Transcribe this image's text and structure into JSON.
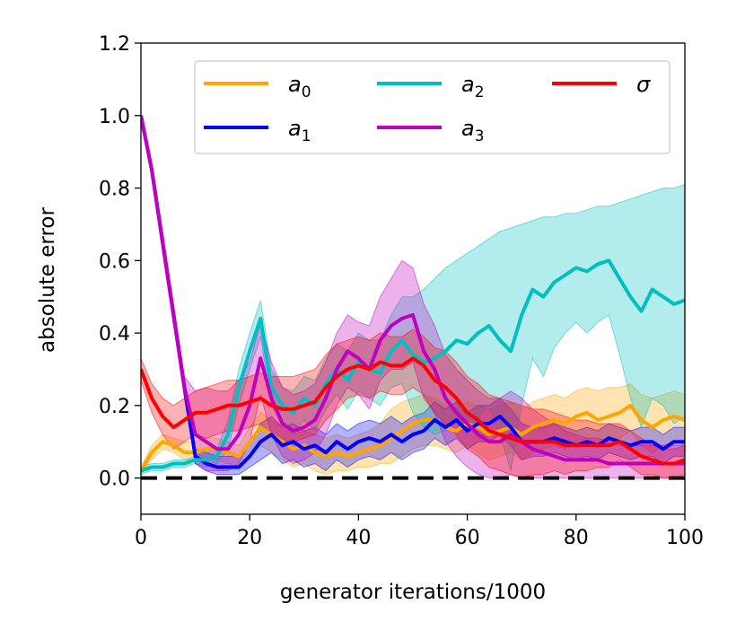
{
  "chart_data": {
    "type": "line",
    "title": "",
    "xlabel": "generator iterations/1000",
    "ylabel": "absolute error",
    "xlim": [
      0,
      100
    ],
    "ylim": [
      -0.1,
      1.2
    ],
    "xticks": [
      0,
      20,
      40,
      60,
      80,
      100
    ],
    "yticks": [
      0.0,
      0.2,
      0.4,
      0.6,
      0.8,
      1.0,
      1.2
    ],
    "xtick_labels": [
      "0",
      "20",
      "40",
      "60",
      "80",
      "100"
    ],
    "ytick_labels": [
      "0.0",
      "0.2",
      "0.4",
      "0.6",
      "0.8",
      "1.0",
      "1.2"
    ],
    "grid": false,
    "legend_position": "top-right",
    "legend_columns": 3,
    "reference_line": {
      "y": 0.0,
      "style": "dashed",
      "color": "#000000"
    },
    "series": [
      {
        "name": "a0",
        "label_base": "a",
        "label_sub": "0",
        "color": "#FFA500",
        "x": [
          0,
          2,
          4,
          6,
          8,
          10,
          12,
          14,
          16,
          18,
          20,
          22,
          24,
          26,
          28,
          30,
          32,
          34,
          36,
          38,
          40,
          42,
          44,
          46,
          48,
          50,
          52,
          54,
          56,
          58,
          60,
          62,
          64,
          66,
          68,
          70,
          72,
          74,
          76,
          78,
          80,
          82,
          84,
          86,
          88,
          90,
          92,
          94,
          96,
          98,
          100
        ],
        "values": [
          0.02,
          0.07,
          0.1,
          0.09,
          0.07,
          0.07,
          0.08,
          0.08,
          0.07,
          0.06,
          0.1,
          0.14,
          0.12,
          0.1,
          0.08,
          0.09,
          0.07,
          0.06,
          0.07,
          0.06,
          0.07,
          0.08,
          0.09,
          0.11,
          0.13,
          0.15,
          0.16,
          0.16,
          0.14,
          0.13,
          0.15,
          0.14,
          0.12,
          0.13,
          0.14,
          0.12,
          0.14,
          0.15,
          0.16,
          0.15,
          0.17,
          0.18,
          0.16,
          0.17,
          0.18,
          0.2,
          0.16,
          0.14,
          0.16,
          0.17,
          0.16
        ],
        "upper": [
          0.03,
          0.09,
          0.12,
          0.11,
          0.1,
          0.1,
          0.11,
          0.11,
          0.1,
          0.09,
          0.14,
          0.18,
          0.16,
          0.14,
          0.12,
          0.13,
          0.12,
          0.11,
          0.12,
          0.11,
          0.12,
          0.13,
          0.15,
          0.19,
          0.21,
          0.22,
          0.23,
          0.22,
          0.2,
          0.19,
          0.21,
          0.2,
          0.19,
          0.2,
          0.21,
          0.19,
          0.21,
          0.22,
          0.23,
          0.22,
          0.24,
          0.25,
          0.24,
          0.25,
          0.25,
          0.26,
          0.23,
          0.22,
          0.23,
          0.24,
          0.23
        ],
        "lower": [
          0.01,
          0.05,
          0.08,
          0.07,
          0.05,
          0.05,
          0.05,
          0.05,
          0.04,
          0.03,
          0.06,
          0.09,
          0.07,
          0.05,
          0.03,
          0.04,
          0.02,
          0.01,
          0.02,
          0.02,
          0.03,
          0.03,
          0.04,
          0.04,
          0.06,
          0.08,
          0.09,
          0.09,
          0.08,
          0.07,
          0.09,
          0.07,
          0.05,
          0.06,
          0.07,
          0.05,
          0.07,
          0.08,
          0.09,
          0.08,
          0.1,
          0.11,
          0.09,
          0.1,
          0.11,
          0.13,
          0.09,
          0.07,
          0.09,
          0.1,
          0.09
        ]
      },
      {
        "name": "a1",
        "label_base": "a",
        "label_sub": "1",
        "color": "#0000FF",
        "x": [
          0,
          2,
          4,
          6,
          8,
          10,
          12,
          14,
          16,
          18,
          20,
          22,
          24,
          26,
          28,
          30,
          32,
          34,
          36,
          38,
          40,
          42,
          44,
          46,
          48,
          50,
          52,
          54,
          56,
          58,
          60,
          62,
          64,
          66,
          68,
          70,
          72,
          74,
          76,
          78,
          80,
          82,
          84,
          86,
          88,
          90,
          92,
          94,
          96,
          98,
          100
        ],
        "values": [
          1.0,
          0.85,
          0.65,
          0.45,
          0.25,
          0.06,
          0.04,
          0.03,
          0.03,
          0.03,
          0.06,
          0.1,
          0.12,
          0.09,
          0.1,
          0.08,
          0.09,
          0.07,
          0.1,
          0.08,
          0.1,
          0.11,
          0.1,
          0.12,
          0.1,
          0.12,
          0.13,
          0.16,
          0.14,
          0.16,
          0.13,
          0.15,
          0.15,
          0.17,
          0.14,
          0.1,
          0.1,
          0.1,
          0.11,
          0.1,
          0.09,
          0.1,
          0.09,
          0.11,
          0.1,
          0.09,
          0.1,
          0.1,
          0.08,
          0.1,
          0.1
        ],
        "upper": [
          1.0,
          0.86,
          0.66,
          0.46,
          0.26,
          0.08,
          0.07,
          0.06,
          0.06,
          0.06,
          0.1,
          0.15,
          0.17,
          0.14,
          0.15,
          0.13,
          0.14,
          0.12,
          0.15,
          0.13,
          0.15,
          0.16,
          0.15,
          0.17,
          0.15,
          0.17,
          0.18,
          0.21,
          0.19,
          0.21,
          0.18,
          0.2,
          0.2,
          0.22,
          0.19,
          0.15,
          0.14,
          0.14,
          0.15,
          0.14,
          0.13,
          0.14,
          0.13,
          0.15,
          0.14,
          0.13,
          0.14,
          0.14,
          0.12,
          0.14,
          0.14
        ],
        "lower": [
          0.99,
          0.84,
          0.64,
          0.44,
          0.24,
          0.04,
          0.02,
          0.01,
          0.01,
          0.01,
          0.03,
          0.05,
          0.07,
          0.04,
          0.05,
          0.03,
          0.04,
          0.02,
          0.05,
          0.03,
          0.05,
          0.06,
          0.05,
          0.07,
          0.05,
          0.07,
          0.08,
          0.11,
          0.09,
          0.11,
          0.08,
          0.1,
          0.1,
          0.12,
          0.09,
          0.05,
          0.06,
          0.06,
          0.07,
          0.06,
          0.05,
          0.06,
          0.05,
          0.07,
          0.06,
          0.05,
          0.06,
          0.06,
          0.04,
          0.06,
          0.06
        ]
      },
      {
        "name": "a2",
        "label_base": "a",
        "label_sub": "2",
        "color": "#00BFBF",
        "x": [
          0,
          2,
          4,
          6,
          8,
          10,
          12,
          14,
          16,
          18,
          20,
          22,
          24,
          26,
          28,
          30,
          32,
          34,
          36,
          38,
          40,
          42,
          44,
          46,
          48,
          50,
          52,
          54,
          56,
          58,
          60,
          62,
          64,
          66,
          68,
          70,
          72,
          74,
          76,
          78,
          80,
          82,
          84,
          86,
          88,
          90,
          92,
          94,
          96,
          98,
          100
        ],
        "values": [
          0.02,
          0.03,
          0.03,
          0.04,
          0.04,
          0.05,
          0.05,
          0.06,
          0.12,
          0.25,
          0.35,
          0.44,
          0.25,
          0.2,
          0.18,
          0.22,
          0.2,
          0.26,
          0.3,
          0.27,
          0.32,
          0.3,
          0.29,
          0.35,
          0.38,
          0.34,
          0.32,
          0.33,
          0.35,
          0.38,
          0.37,
          0.4,
          0.42,
          0.38,
          0.35,
          0.45,
          0.52,
          0.5,
          0.54,
          0.56,
          0.58,
          0.57,
          0.59,
          0.6,
          0.55,
          0.5,
          0.46,
          0.52,
          0.5,
          0.48,
          0.49
        ],
        "upper": [
          0.03,
          0.04,
          0.04,
          0.05,
          0.05,
          0.06,
          0.07,
          0.08,
          0.16,
          0.3,
          0.4,
          0.49,
          0.3,
          0.25,
          0.24,
          0.28,
          0.27,
          0.33,
          0.37,
          0.35,
          0.4,
          0.38,
          0.38,
          0.45,
          0.5,
          0.5,
          0.52,
          0.55,
          0.58,
          0.6,
          0.62,
          0.64,
          0.66,
          0.68,
          0.69,
          0.7,
          0.71,
          0.72,
          0.72,
          0.73,
          0.73,
          0.74,
          0.75,
          0.75,
          0.76,
          0.77,
          0.78,
          0.79,
          0.8,
          0.8,
          0.81
        ],
        "lower": [
          0.01,
          0.02,
          0.02,
          0.03,
          0.03,
          0.04,
          0.03,
          0.04,
          0.08,
          0.2,
          0.3,
          0.39,
          0.2,
          0.15,
          0.12,
          0.16,
          0.13,
          0.19,
          0.23,
          0.19,
          0.24,
          0.22,
          0.2,
          0.25,
          0.26,
          0.18,
          0.14,
          0.12,
          0.13,
          0.17,
          0.13,
          0.17,
          0.2,
          0.12,
          0.02,
          0.2,
          0.33,
          0.28,
          0.36,
          0.4,
          0.43,
          0.4,
          0.43,
          0.45,
          0.34,
          0.22,
          0.14,
          0.22,
          0.2,
          0.15,
          0.17
        ]
      },
      {
        "name": "a3",
        "label_base": "a",
        "label_sub": "3",
        "color": "#BF00BF",
        "x": [
          0,
          2,
          4,
          6,
          8,
          10,
          12,
          14,
          16,
          18,
          20,
          22,
          24,
          26,
          28,
          30,
          32,
          34,
          36,
          38,
          40,
          42,
          44,
          46,
          48,
          50,
          52,
          54,
          56,
          58,
          60,
          62,
          64,
          66,
          68,
          70,
          72,
          74,
          76,
          78,
          80,
          82,
          84,
          86,
          88,
          90,
          92,
          94,
          96,
          98,
          100
        ],
        "values": [
          1.0,
          0.85,
          0.65,
          0.45,
          0.25,
          0.12,
          0.1,
          0.08,
          0.08,
          0.12,
          0.2,
          0.33,
          0.22,
          0.15,
          0.13,
          0.14,
          0.16,
          0.22,
          0.3,
          0.35,
          0.33,
          0.3,
          0.38,
          0.42,
          0.44,
          0.45,
          0.35,
          0.3,
          0.22,
          0.18,
          0.15,
          0.12,
          0.1,
          0.1,
          0.12,
          0.1,
          0.08,
          0.07,
          0.06,
          0.05,
          0.05,
          0.05,
          0.05,
          0.04,
          0.04,
          0.04,
          0.04,
          0.04,
          0.04,
          0.04,
          0.04
        ],
        "upper": [
          1.0,
          0.87,
          0.68,
          0.48,
          0.28,
          0.24,
          0.25,
          0.24,
          0.24,
          0.27,
          0.32,
          0.43,
          0.32,
          0.25,
          0.23,
          0.24,
          0.26,
          0.32,
          0.4,
          0.45,
          0.43,
          0.42,
          0.5,
          0.55,
          0.6,
          0.58,
          0.48,
          0.42,
          0.34,
          0.3,
          0.27,
          0.24,
          0.22,
          0.22,
          0.24,
          0.22,
          0.19,
          0.17,
          0.15,
          0.13,
          0.12,
          0.11,
          0.11,
          0.1,
          0.09,
          0.09,
          0.09,
          0.09,
          0.09,
          0.09,
          0.09
        ],
        "lower": [
          0.99,
          0.83,
          0.62,
          0.42,
          0.22,
          0.04,
          0.02,
          0.02,
          0.02,
          0.04,
          0.1,
          0.23,
          0.12,
          0.06,
          0.04,
          0.05,
          0.07,
          0.12,
          0.2,
          0.25,
          0.23,
          0.19,
          0.27,
          0.3,
          0.3,
          0.32,
          0.22,
          0.18,
          0.1,
          0.06,
          0.03,
          0.01,
          0.0,
          0.0,
          0.01,
          0.0,
          0.0,
          0.0,
          0.0,
          0.0,
          0.0,
          0.0,
          0.0,
          0.0,
          0.0,
          0.0,
          0.0,
          0.0,
          0.0,
          0.0,
          0.0
        ]
      },
      {
        "name": "sigma",
        "label_base": "σ",
        "label_sub": "",
        "color": "#FF0000",
        "x": [
          0,
          2,
          4,
          6,
          8,
          10,
          12,
          14,
          16,
          18,
          20,
          22,
          24,
          26,
          28,
          30,
          32,
          34,
          36,
          38,
          40,
          42,
          44,
          46,
          48,
          50,
          52,
          54,
          56,
          58,
          60,
          62,
          64,
          66,
          68,
          70,
          72,
          74,
          76,
          78,
          80,
          82,
          84,
          86,
          88,
          90,
          92,
          94,
          96,
          98,
          100
        ],
        "values": [
          0.3,
          0.22,
          0.17,
          0.14,
          0.16,
          0.18,
          0.18,
          0.19,
          0.2,
          0.2,
          0.21,
          0.22,
          0.2,
          0.19,
          0.19,
          0.2,
          0.21,
          0.25,
          0.28,
          0.3,
          0.31,
          0.3,
          0.32,
          0.31,
          0.31,
          0.33,
          0.31,
          0.27,
          0.25,
          0.22,
          0.18,
          0.16,
          0.13,
          0.12,
          0.11,
          0.1,
          0.1,
          0.1,
          0.1,
          0.09,
          0.09,
          0.09,
          0.09,
          0.09,
          0.1,
          0.08,
          0.06,
          0.05,
          0.04,
          0.04,
          0.05
        ],
        "upper": [
          0.33,
          0.26,
          0.22,
          0.2,
          0.22,
          0.24,
          0.25,
          0.26,
          0.27,
          0.27,
          0.28,
          0.29,
          0.28,
          0.28,
          0.28,
          0.29,
          0.3,
          0.34,
          0.37,
          0.38,
          0.39,
          0.38,
          0.4,
          0.39,
          0.39,
          0.41,
          0.39,
          0.36,
          0.35,
          0.32,
          0.28,
          0.26,
          0.23,
          0.22,
          0.21,
          0.2,
          0.19,
          0.19,
          0.18,
          0.17,
          0.16,
          0.16,
          0.15,
          0.15,
          0.15,
          0.13,
          0.11,
          0.09,
          0.08,
          0.08,
          0.09
        ],
        "lower": [
          0.27,
          0.18,
          0.12,
          0.08,
          0.1,
          0.12,
          0.11,
          0.12,
          0.13,
          0.13,
          0.14,
          0.15,
          0.12,
          0.1,
          0.1,
          0.11,
          0.12,
          0.16,
          0.19,
          0.22,
          0.23,
          0.22,
          0.24,
          0.23,
          0.23,
          0.25,
          0.23,
          0.18,
          0.15,
          0.12,
          0.08,
          0.06,
          0.03,
          0.02,
          0.01,
          0.0,
          0.01,
          0.01,
          0.02,
          0.01,
          0.02,
          0.02,
          0.03,
          0.03,
          0.05,
          0.03,
          0.01,
          0.01,
          0.0,
          0.0,
          0.01
        ]
      }
    ]
  }
}
